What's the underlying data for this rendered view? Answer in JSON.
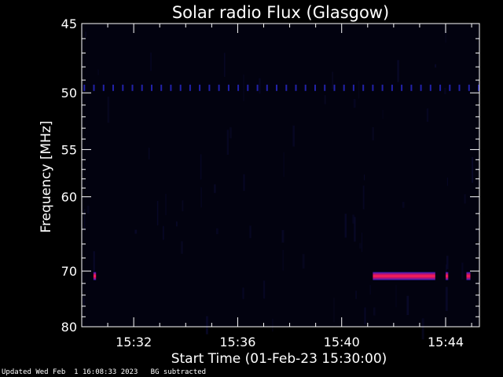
{
  "colors": {
    "background": "#000000",
    "plot_background": "#02020f",
    "axes": "#ffffff",
    "faint_band": "#2222aa",
    "burst_core": "#ff2060",
    "burst_edge": "#4422cc"
  },
  "footer": {
    "updated": "Updated Wed Feb  1 16:08:33 2023",
    "note": "BG subtracted"
  },
  "chart_data": {
    "type": "heatmap",
    "title": "Solar radio Flux (Glasgow)",
    "xlabel": "Start Time (01-Feb-23 15:30:00)",
    "ylabel": "Frequency [MHz]",
    "x_unit": "minutes after 15:30",
    "xlim": [
      0.0,
      15.3
    ],
    "ylim": [
      45,
      80
    ],
    "y_scale": "reciprocal",
    "x_tick_labels": [
      "15:32",
      "15:36",
      "15:40",
      "15:44"
    ],
    "x_tick_values": [
      2,
      6,
      10,
      14
    ],
    "y_tick_labels": [
      "45",
      "50",
      "55",
      "60",
      "70",
      "80"
    ],
    "y_tick_values": [
      45,
      50,
      55,
      60,
      70,
      80
    ],
    "grid": false,
    "features": {
      "periodic_dots": {
        "frequency_mhz": 49.6,
        "interval_min": 0.37,
        "start_min": 0.1,
        "end_min": 15.3
      },
      "bursts": [
        {
          "start_min": 0.45,
          "end_min": 0.55,
          "frequency_mhz": 70.8
        },
        {
          "start_min": 11.2,
          "end_min": 13.6,
          "frequency_mhz": 70.8
        },
        {
          "start_min": 14.0,
          "end_min": 14.1,
          "frequency_mhz": 70.8
        },
        {
          "start_min": 14.8,
          "end_min": 14.95,
          "frequency_mhz": 70.8
        }
      ]
    }
  }
}
